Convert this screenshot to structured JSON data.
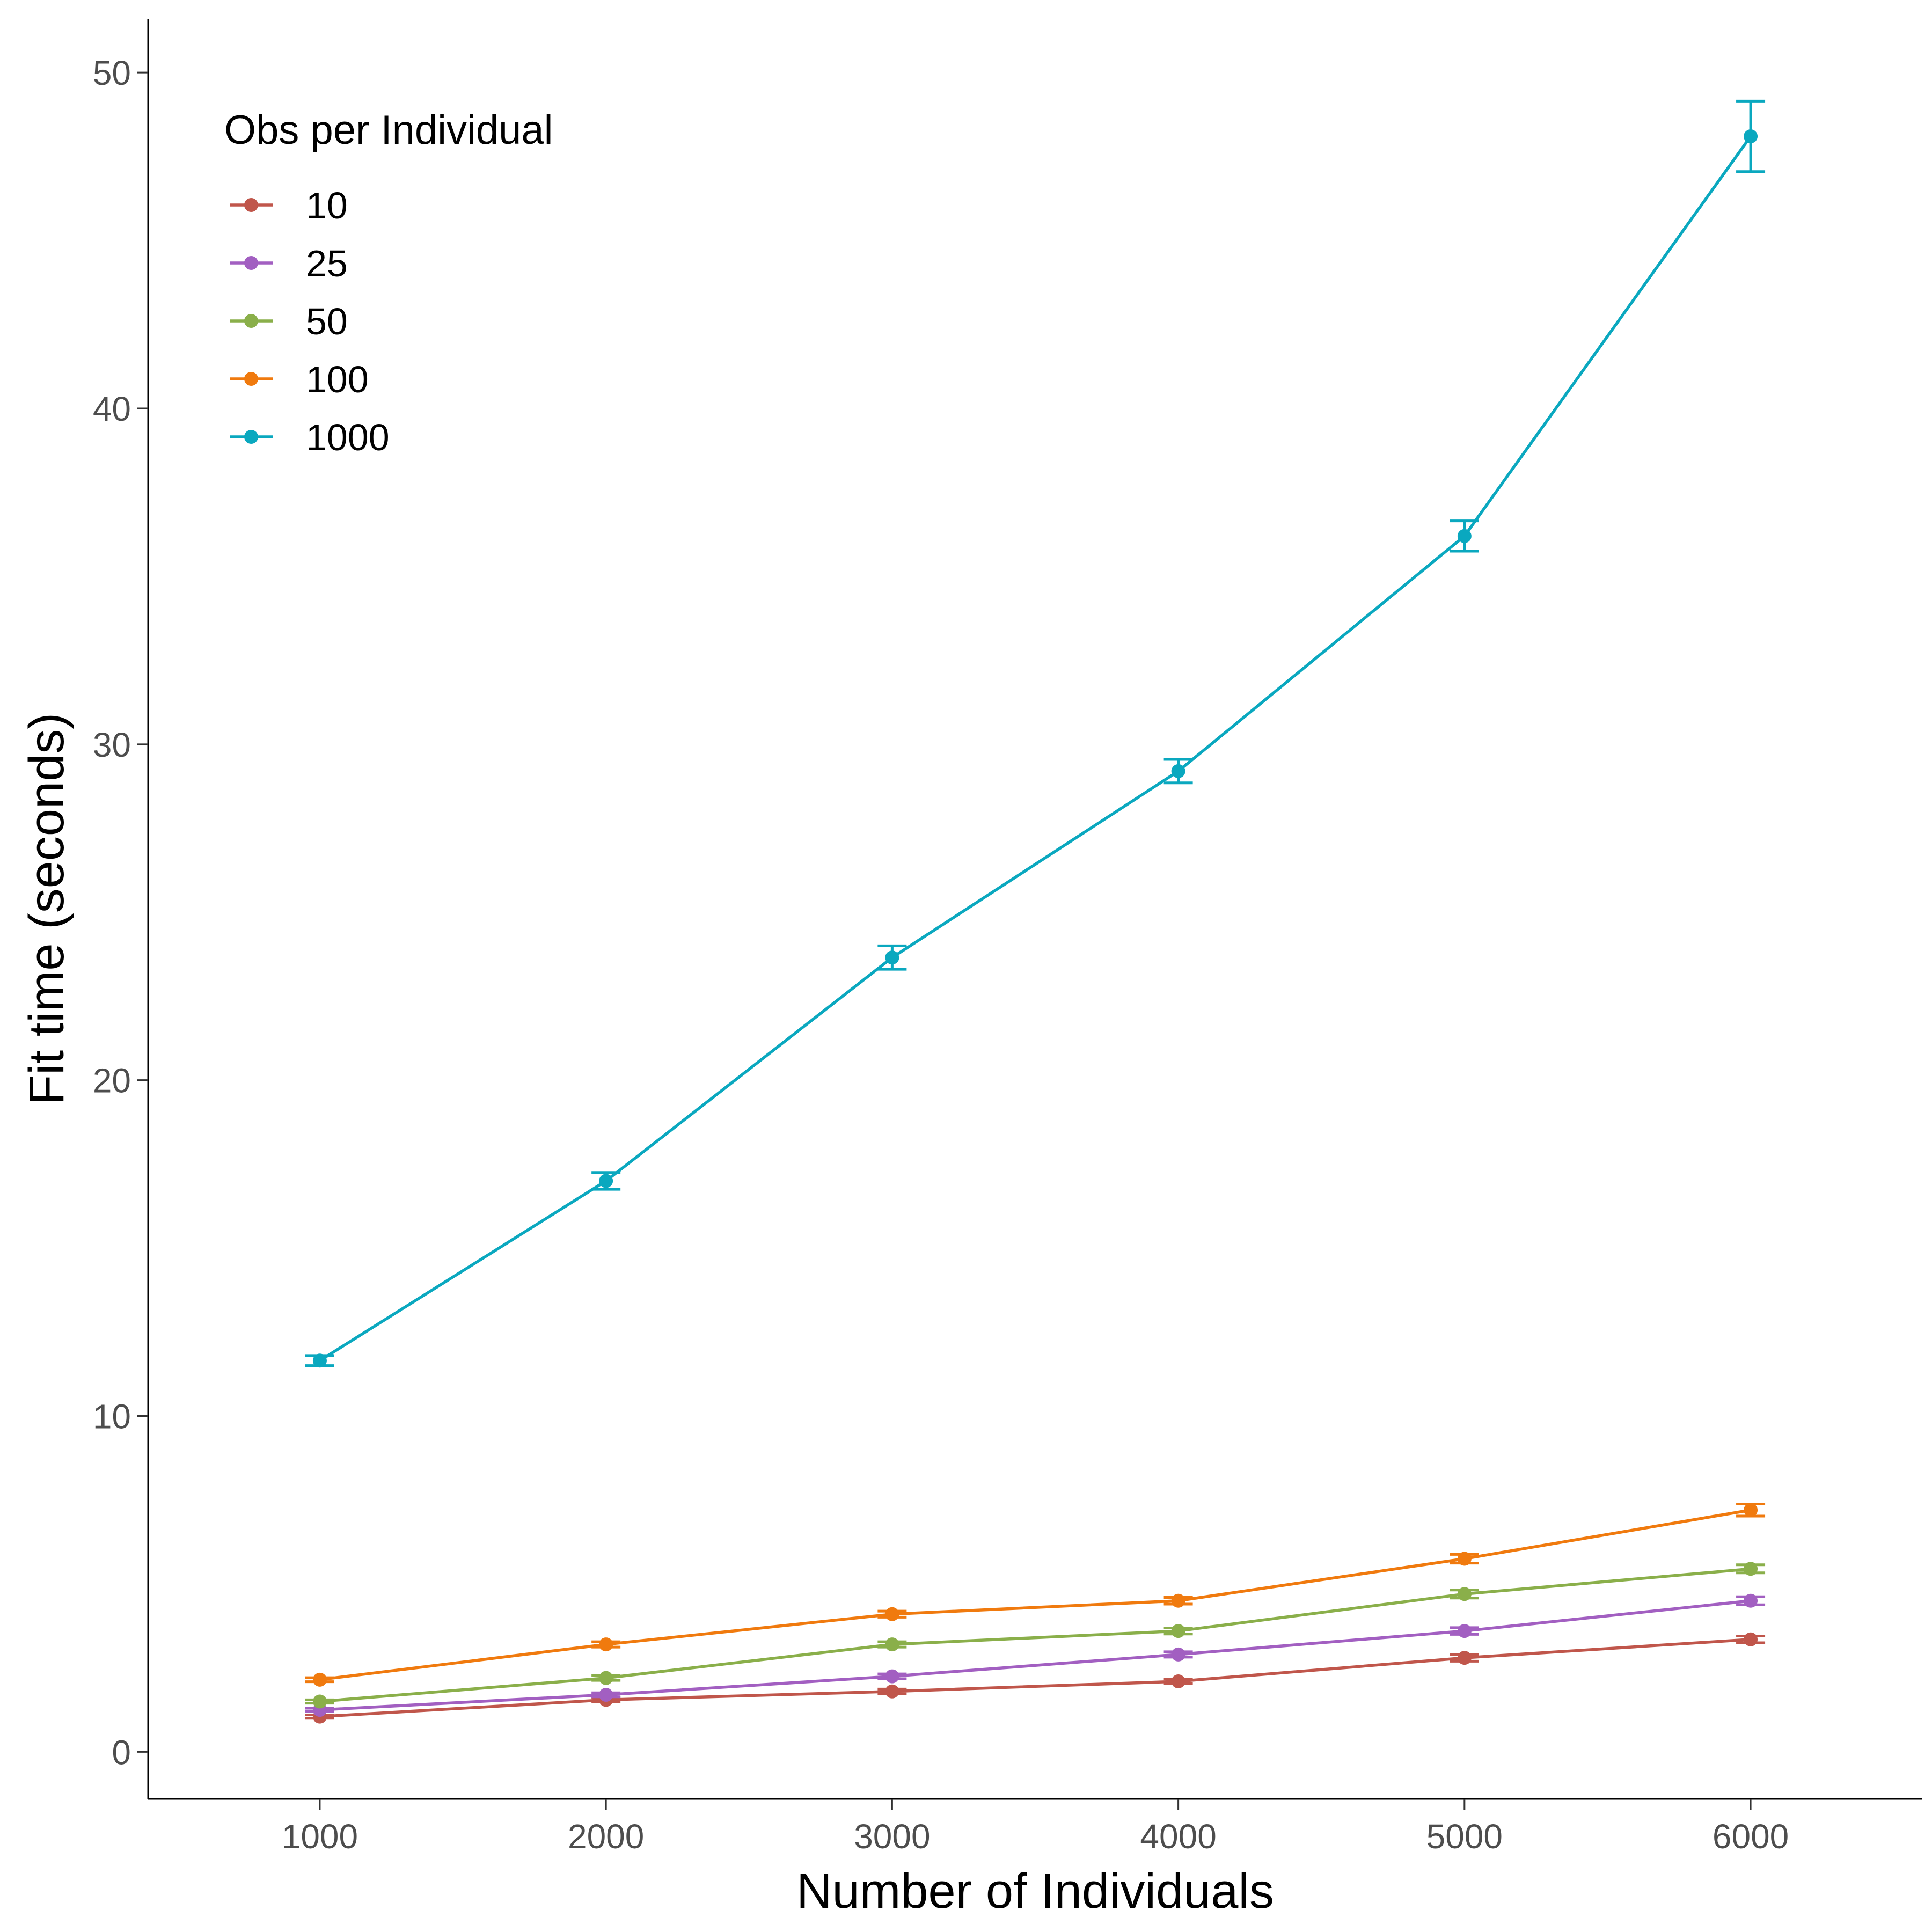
{
  "chart_data": {
    "type": "line",
    "title": "",
    "xlabel": "Number of Individuals",
    "ylabel": "Fit time (seconds)",
    "x": [
      1000,
      2000,
      3000,
      4000,
      5000,
      6000
    ],
    "xlim": [
      400,
      6600
    ],
    "ylim": [
      -1.4,
      51.6
    ],
    "xticks": [
      1000,
      2000,
      3000,
      4000,
      5000,
      6000
    ],
    "yticks": [
      0,
      10,
      20,
      30,
      40,
      50
    ],
    "grid": false,
    "error_bars": true,
    "legend": {
      "title": "Obs per Individual",
      "position": "top-left"
    },
    "series": [
      {
        "name": "10",
        "color": "#C0564B",
        "values": [
          1.05,
          1.55,
          1.8,
          2.1,
          2.8,
          3.35
        ],
        "err": [
          0.05,
          0.06,
          0.07,
          0.07,
          0.1,
          0.1
        ]
      },
      {
        "name": "25",
        "color": "#A25FC1",
        "values": [
          1.25,
          1.7,
          2.25,
          2.9,
          3.6,
          4.5
        ],
        "err": [
          0.05,
          0.06,
          0.07,
          0.08,
          0.1,
          0.12
        ]
      },
      {
        "name": "50",
        "color": "#8AAF4A",
        "values": [
          1.5,
          2.2,
          3.2,
          3.6,
          4.7,
          5.45
        ],
        "err": [
          0.05,
          0.07,
          0.08,
          0.09,
          0.12,
          0.12
        ]
      },
      {
        "name": "100",
        "color": "#F07A0E",
        "values": [
          2.15,
          3.2,
          4.1,
          4.5,
          5.75,
          7.2
        ],
        "err": [
          0.06,
          0.08,
          0.09,
          0.1,
          0.13,
          0.18
        ]
      },
      {
        "name": "1000",
        "color": "#0AA8BF",
        "values": [
          11.65,
          17.0,
          23.65,
          29.2,
          36.2,
          48.1
        ],
        "err": [
          0.15,
          0.25,
          0.35,
          0.35,
          0.45,
          1.05
        ]
      }
    ]
  }
}
